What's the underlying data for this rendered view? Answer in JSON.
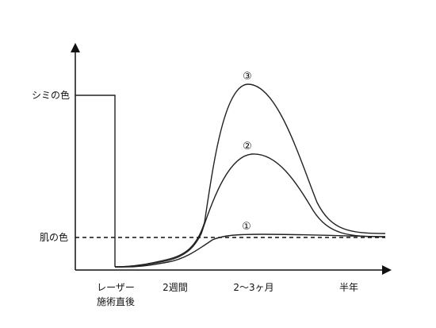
{
  "labels": {
    "spot_color": "シミの色",
    "skin_color": "肌の色",
    "x_laser_line1": "レーザー",
    "x_laser_line2": "施術直後",
    "x_2weeks": "2週間",
    "x_2_3months": "2～3ヶ月",
    "x_half_year": "半年"
  },
  "curves": [
    {
      "id": "1",
      "label": "①"
    },
    {
      "id": "2",
      "label": "②"
    },
    {
      "id": "3",
      "label": "③"
    }
  ],
  "colors": {
    "line": "#222222",
    "text": "#111111",
    "background": "#ffffff"
  }
}
